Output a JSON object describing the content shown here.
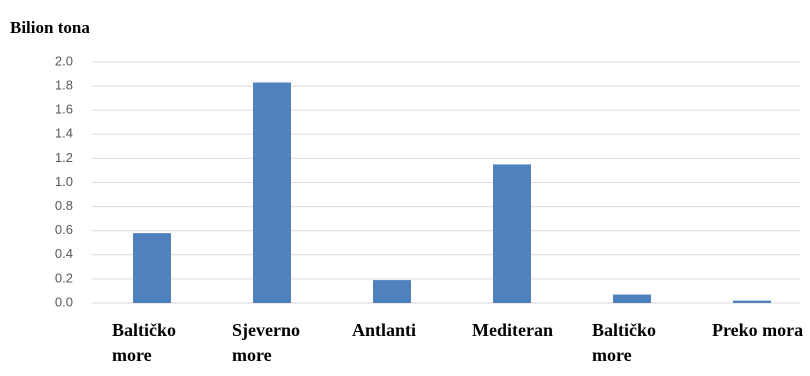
{
  "chart_data": {
    "type": "bar",
    "title": "Bilion tona",
    "categories": [
      "Baltičko more",
      "Sjeverno more",
      "Antlanti",
      "Mediteran",
      "Baltičko more",
      "Preko mora"
    ],
    "values": [
      0.58,
      1.83,
      0.19,
      1.15,
      0.07,
      0.02
    ],
    "color": "#4f81bd",
    "ylim": [
      0,
      2
    ],
    "yticks": [
      {
        "value": 0,
        "label": "0.0"
      },
      0.2,
      0.4,
      0.6,
      0.8,
      {
        "value": 1,
        "label": "1.0"
      },
      1.2,
      1.4,
      1.6,
      1.8,
      {
        "value": 2,
        "label": "2.0"
      }
    ],
    "grid": true
  }
}
